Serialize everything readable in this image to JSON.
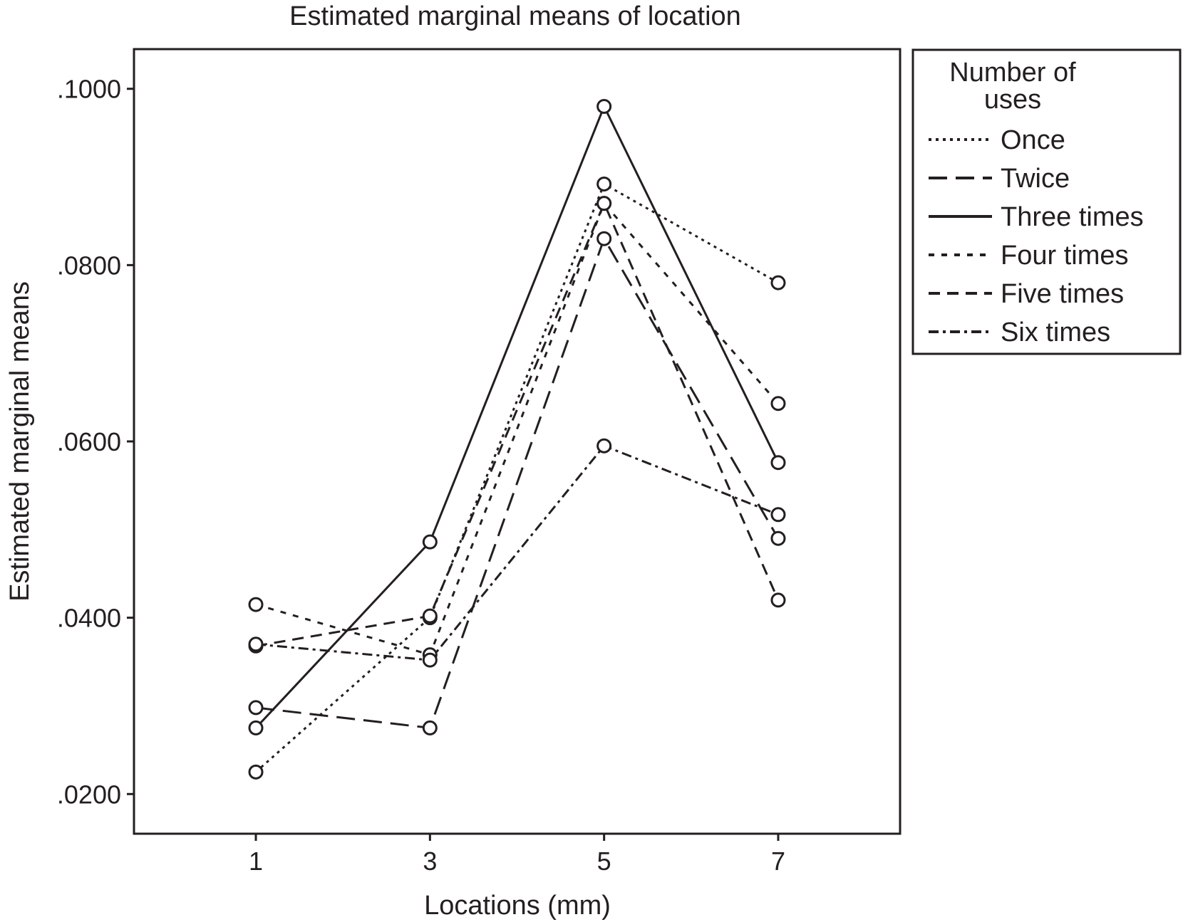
{
  "chart_data": {
    "type": "line",
    "title": "Estimated marginal means of location",
    "xlabel": "Locations (mm)",
    "ylabel": "Estimated marginal means",
    "x": [
      1,
      3,
      5,
      7
    ],
    "x_tick_labels": [
      "1",
      "3",
      "5",
      "7"
    ],
    "xlim": [
      -0.4,
      8.4
    ],
    "ylim": [
      0.0155,
      0.1045
    ],
    "y_ticks": [
      0.02,
      0.04,
      0.06,
      0.08,
      0.1
    ],
    "y_tick_labels": [
      ".0200",
      ".0400",
      ".0600",
      ".0800",
      ".1000"
    ],
    "grid": false,
    "marker": "open-circle",
    "legend": {
      "title": "Number of",
      "title_line2": "uses",
      "position": "right"
    },
    "series": [
      {
        "name": "Once",
        "style": "dotted",
        "values": [
          0.0225,
          0.04,
          0.0892,
          0.078
        ]
      },
      {
        "name": "Twice",
        "style": "long-dash",
        "values": [
          0.0298,
          0.0275,
          0.083,
          0.049
        ]
      },
      {
        "name": "Three times",
        "style": "solid",
        "values": [
          0.0275,
          0.0486,
          0.098,
          0.0576
        ]
      },
      {
        "name": "Four times",
        "style": "short-dash",
        "values": [
          0.0415,
          0.0358,
          0.087,
          0.0643
        ]
      },
      {
        "name": "Five times",
        "style": "medium-dash",
        "values": [
          0.0368,
          0.0402,
          0.087,
          0.042
        ]
      },
      {
        "name": "Six times",
        "style": "dash-dot",
        "values": [
          0.037,
          0.0352,
          0.0595,
          0.0517
        ]
      }
    ]
  }
}
